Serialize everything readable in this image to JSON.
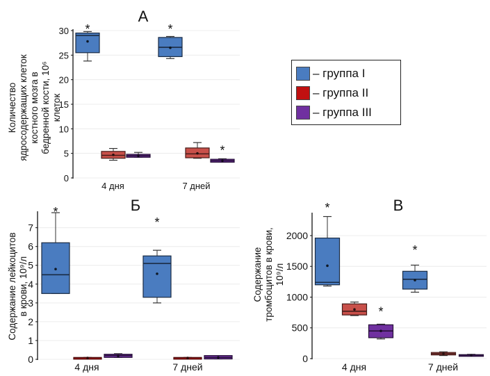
{
  "legend": {
    "items": [
      {
        "label": "– группа I",
        "color": "#4a7cc0"
      },
      {
        "label": "– группа II",
        "color": "#c01010"
      },
      {
        "label": "– группа III",
        "color": "#7030a0"
      }
    ]
  },
  "chart_data": [
    {
      "type": "box",
      "title": "А",
      "ylabel": "Количество ядросодержащих клеток костного мозга в бедренной кости, 10⁶ клеток",
      "ylabel_lines": [
        "Количество",
        "ядросодержащих клеток",
        "костного мозга в",
        "бедренной кости, 10⁶",
        "клеток"
      ],
      "ylim": [
        0,
        30
      ],
      "yticks": [
        0,
        5,
        10,
        15,
        20,
        25,
        30
      ],
      "grid": true,
      "categories": [
        "4 дня",
        "7 дней"
      ],
      "series": [
        {
          "name": "группа I",
          "color": "#4a7cc0",
          "boxes": [
            {
              "min": 23.8,
              "q1": 25.5,
              "median": 29.0,
              "q3": 29.5,
              "max": 29.8,
              "mean": 27.8,
              "star": true
            },
            {
              "min": 24.3,
              "q1": 24.7,
              "median": 26.6,
              "q3": 28.6,
              "max": 28.8,
              "mean": 26.5,
              "star": true
            }
          ]
        },
        {
          "name": "группа II",
          "color": "#c8504a",
          "boxes": [
            {
              "min": 3.6,
              "q1": 4.0,
              "median": 4.6,
              "q3": 5.4,
              "max": 6.0,
              "mean": 4.7,
              "star": false
            },
            {
              "min": 4.0,
              "q1": 4.1,
              "median": 4.9,
              "q3": 6.1,
              "max": 7.2,
              "mean": 5.0,
              "star": false
            }
          ]
        },
        {
          "name": "группа III",
          "color": "#7030a0",
          "boxes": [
            {
              "min": 4.2,
              "q1": 4.2,
              "median": 4.5,
              "q3": 4.8,
              "max": 5.2,
              "mean": 4.5,
              "star": false
            },
            {
              "min": 3.2,
              "q1": 3.2,
              "median": 3.5,
              "q3": 3.8,
              "max": 3.9,
              "mean": 3.5,
              "star": true
            }
          ]
        }
      ]
    },
    {
      "type": "box",
      "title": "Б",
      "ylabel": "Содержание лейкоцитов в крови, 10⁹/л",
      "ylabel_lines": [
        "Содержание лейкоцитов",
        "в крови, 10⁹/л"
      ],
      "ylim": [
        0,
        7.8
      ],
      "yticks": [
        0,
        1,
        2,
        3,
        4,
        5,
        6,
        7
      ],
      "grid": true,
      "categories": [
        "4 дня",
        "7 дней"
      ],
      "series": [
        {
          "name": "группа I",
          "color": "#4a7cc0",
          "boxes": [
            {
              "min": 3.5,
              "q1": 3.5,
              "median": 4.5,
              "q3": 6.2,
              "max": 7.8,
              "mean": 4.8,
              "star": true
            },
            {
              "min": 3.0,
              "q1": 3.3,
              "median": 5.1,
              "q3": 5.5,
              "max": 5.8,
              "mean": 4.55,
              "star": true
            }
          ]
        },
        {
          "name": "группа II",
          "color": "#e02020",
          "boxes": [
            {
              "min": 0.05,
              "q1": 0.07,
              "median": 0.08,
              "q3": 0.1,
              "max": 0.1,
              "mean": 0.07,
              "star": false
            },
            {
              "min": 0.05,
              "q1": 0.07,
              "median": 0.08,
              "q3": 0.1,
              "max": 0.1,
              "mean": 0.07,
              "star": false
            }
          ]
        },
        {
          "name": "группа III",
          "color": "#7030a0",
          "boxes": [
            {
              "min": 0.1,
              "q1": 0.1,
              "median": 0.2,
              "q3": 0.27,
              "max": 0.3,
              "mean": 0.18,
              "star": false
            },
            {
              "min": 0.02,
              "q1": 0.02,
              "median": 0.1,
              "q3": 0.2,
              "max": 0.2,
              "mean": 0.1,
              "star": false
            }
          ]
        }
      ]
    },
    {
      "type": "box",
      "title": "В",
      "ylabel": "Содержание тромбоцитов в крови, 10⁹/л",
      "ylabel_lines": [
        "Содержание",
        "тромбоцитов в крови,",
        "10⁹/л"
      ],
      "ylim": [
        0,
        2350
      ],
      "yticks": [
        0,
        500,
        1000,
        1500,
        2000
      ],
      "grid": true,
      "categories": [
        "4 дня",
        "7 дней"
      ],
      "series": [
        {
          "name": "группа I",
          "color": "#4a7cc0",
          "boxes": [
            {
              "min": 1180,
              "q1": 1200,
              "median": 1240,
              "q3": 1960,
              "max": 2310,
              "mean": 1510,
              "star": true
            },
            {
              "min": 1080,
              "q1": 1130,
              "median": 1290,
              "q3": 1420,
              "max": 1520,
              "mean": 1275,
              "star": true
            }
          ]
        },
        {
          "name": "группа II",
          "color": "#c8504a",
          "boxes": [
            {
              "min": 700,
              "q1": 710,
              "median": 770,
              "q3": 890,
              "max": 920,
              "mean": 800,
              "star": false
            },
            {
              "min": 50,
              "q1": 60,
              "median": 80,
              "q3": 100,
              "max": 110,
              "mean": 80,
              "star": false
            }
          ]
        },
        {
          "name": "группа III",
          "color": "#7030a0",
          "boxes": [
            {
              "min": 320,
              "q1": 340,
              "median": 450,
              "q3": 550,
              "max": 560,
              "mean": 450,
              "star": true
            },
            {
              "min": 40,
              "q1": 45,
              "median": 55,
              "q3": 65,
              "max": 70,
              "mean": 55,
              "star": false
            }
          ]
        }
      ]
    }
  ]
}
